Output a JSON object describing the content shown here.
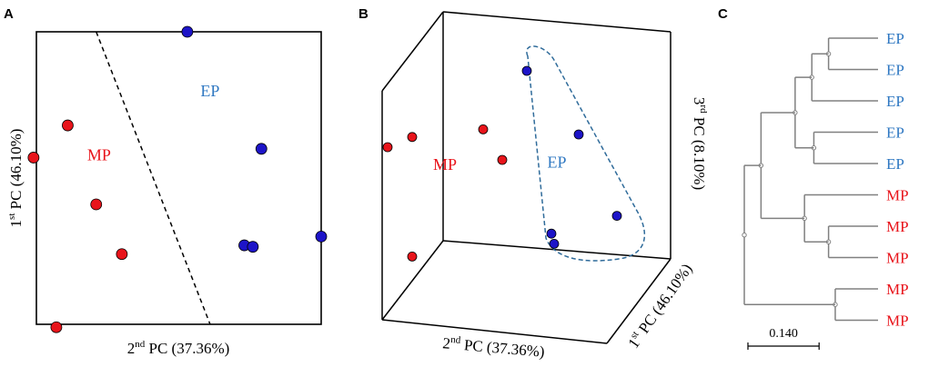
{
  "colors": {
    "MP": "#e8141b",
    "EP": "#1d14c8",
    "EP_label": "#2f78c2",
    "tree": "#808080",
    "ellipse": "#2f6b9a"
  },
  "chart_data": [
    {
      "panel": "A",
      "type": "scatter",
      "xlabel": {
        "main": "2",
        "sup": "nd",
        "rest": " PC (37.36%)"
      },
      "ylabel": {
        "main": "1",
        "sup": "st",
        "rest": " PC (46.10%)"
      },
      "xlim": [
        0,
        100
      ],
      "ylim": [
        0,
        100
      ],
      "group_labels": [
        {
          "text": "MP",
          "group": "MP",
          "x": 22,
          "y": 56
        },
        {
          "text": "EP",
          "group": "EP",
          "x": 61,
          "y": 78
        }
      ],
      "separator": [
        [
          21,
          100
        ],
        [
          61,
          0
        ]
      ],
      "series": [
        {
          "name": "MP",
          "points": [
            [
              -1,
              57
            ],
            [
              11,
              68
            ],
            [
              21,
              41
            ],
            [
              30,
              24
            ],
            [
              7,
              -1
            ]
          ]
        },
        {
          "name": "EP",
          "points": [
            [
              53,
              100
            ],
            [
              79,
              60
            ],
            [
              73,
              27
            ],
            [
              76,
              26.5
            ],
            [
              100,
              30
            ]
          ]
        }
      ]
    },
    {
      "panel": "B",
      "type": "scatter3d",
      "xlabel": {
        "main": "2",
        "sup": "nd",
        "rest": " PC (37.36%)"
      },
      "ylabel": {
        "main": "1",
        "sup": "st",
        "rest": " PC (46.10%)"
      },
      "zlabel": {
        "main": "3",
        "sup": "rd",
        "rest": " PC (8.10%)"
      },
      "xlim": [
        0,
        100
      ],
      "ylim": [
        0,
        100
      ],
      "group_labels": [
        {
          "text": "MP",
          "group": "MP",
          "x": 23,
          "y": 51
        },
        {
          "text": "EP",
          "group": "EP",
          "x": 64,
          "y": 52
        }
      ],
      "series": [
        {
          "name": "MP",
          "points": [
            [
              2,
              60
            ],
            [
              11,
              64
            ],
            [
              37,
              67
            ],
            [
              44,
              55
            ],
            [
              11,
              17
            ]
          ]
        },
        {
          "name": "EP",
          "points": [
            [
              53,
              90
            ],
            [
              72,
              65
            ],
            [
              86,
              33
            ],
            [
              62,
              26
            ],
            [
              63,
              22
            ]
          ]
        }
      ]
    },
    {
      "panel": "C",
      "type": "dendrogram",
      "leaves": [
        {
          "label": "EP",
          "group": "EP"
        },
        {
          "label": "EP",
          "group": "EP"
        },
        {
          "label": "EP",
          "group": "EP"
        },
        {
          "label": "EP",
          "group": "EP"
        },
        {
          "label": "EP",
          "group": "EP"
        },
        {
          "label": "MP",
          "group": "MP"
        },
        {
          "label": "MP",
          "group": "MP"
        },
        {
          "label": "MP",
          "group": "MP"
        },
        {
          "label": "MP",
          "group": "MP"
        },
        {
          "label": "MP",
          "group": "MP"
        }
      ],
      "tree": {
        "h": 0,
        "children": [
          {
            "h": 0.125,
            "children": [
              {
                "h": 0.38,
                "children": [
                  {
                    "h": 0.505,
                    "children": [
                      {
                        "h": 0.63,
                        "children": [
                          {
                            "leaf": 0
                          },
                          {
                            "leaf": 1
                          }
                        ]
                      },
                      {
                        "leaf": 2
                      }
                    ]
                  },
                  {
                    "h": 0.52,
                    "children": [
                      {
                        "leaf": 3
                      },
                      {
                        "leaf": 4
                      }
                    ]
                  }
                ]
              },
              {
                "h": 0.45,
                "children": [
                  {
                    "leaf": 5
                  },
                  {
                    "h": 0.63,
                    "children": [
                      {
                        "leaf": 6
                      },
                      {
                        "leaf": 7
                      }
                    ]
                  }
                ]
              }
            ]
          },
          {
            "h": 0.68,
            "children": [
              {
                "leaf": 8
              },
              {
                "leaf": 9
              }
            ]
          }
        ]
      },
      "scale_bar": {
        "label": "0.140",
        "length": 0.14
      }
    }
  ],
  "panels": {
    "a": "A",
    "b": "B",
    "c": "C"
  }
}
